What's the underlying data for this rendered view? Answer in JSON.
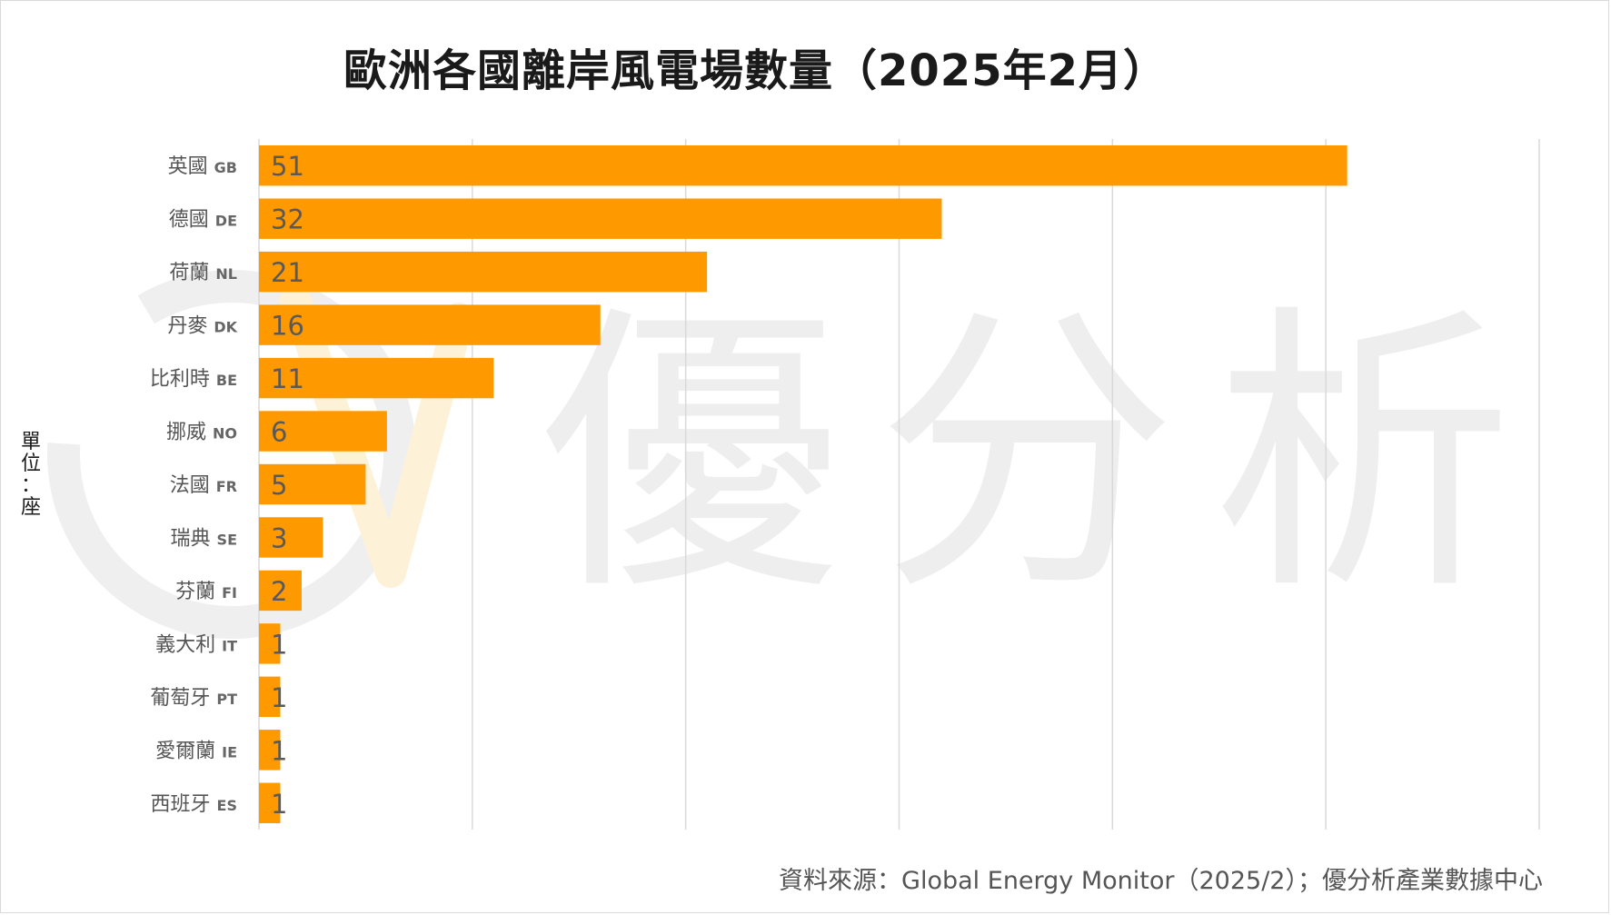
{
  "chart_data": {
    "type": "bar",
    "orientation": "horizontal",
    "title": "歐洲各國離岸風電場數量（2025年2月）",
    "unit_label": "單位：座",
    "source": "資料來源：Global Energy Monitor（2025/2）；優分析產業數據中心",
    "watermark": "優分析",
    "categories": [
      {
        "name": "英國",
        "code": "GB"
      },
      {
        "name": "德國",
        "code": "DE"
      },
      {
        "name": "荷蘭",
        "code": "NL"
      },
      {
        "name": "丹麥",
        "code": "DK"
      },
      {
        "name": "比利時",
        "code": "BE"
      },
      {
        "name": "挪威",
        "code": "NO"
      },
      {
        "name": "法國",
        "code": "FR"
      },
      {
        "name": "瑞典",
        "code": "SE"
      },
      {
        "name": "芬蘭",
        "code": "FI"
      },
      {
        "name": "義大利",
        "code": "IT"
      },
      {
        "name": "葡萄牙",
        "code": "PT"
      },
      {
        "name": "愛爾蘭",
        "code": "IE"
      },
      {
        "name": "西班牙",
        "code": "ES"
      }
    ],
    "values": [
      51,
      32,
      21,
      16,
      11,
      6,
      5,
      3,
      2,
      1,
      1,
      1,
      1
    ],
    "xlim": [
      0,
      60
    ],
    "grid": true,
    "bar_color": "#ff9900",
    "grid_color": "#d9d9d9",
    "label_color": "#595959"
  }
}
